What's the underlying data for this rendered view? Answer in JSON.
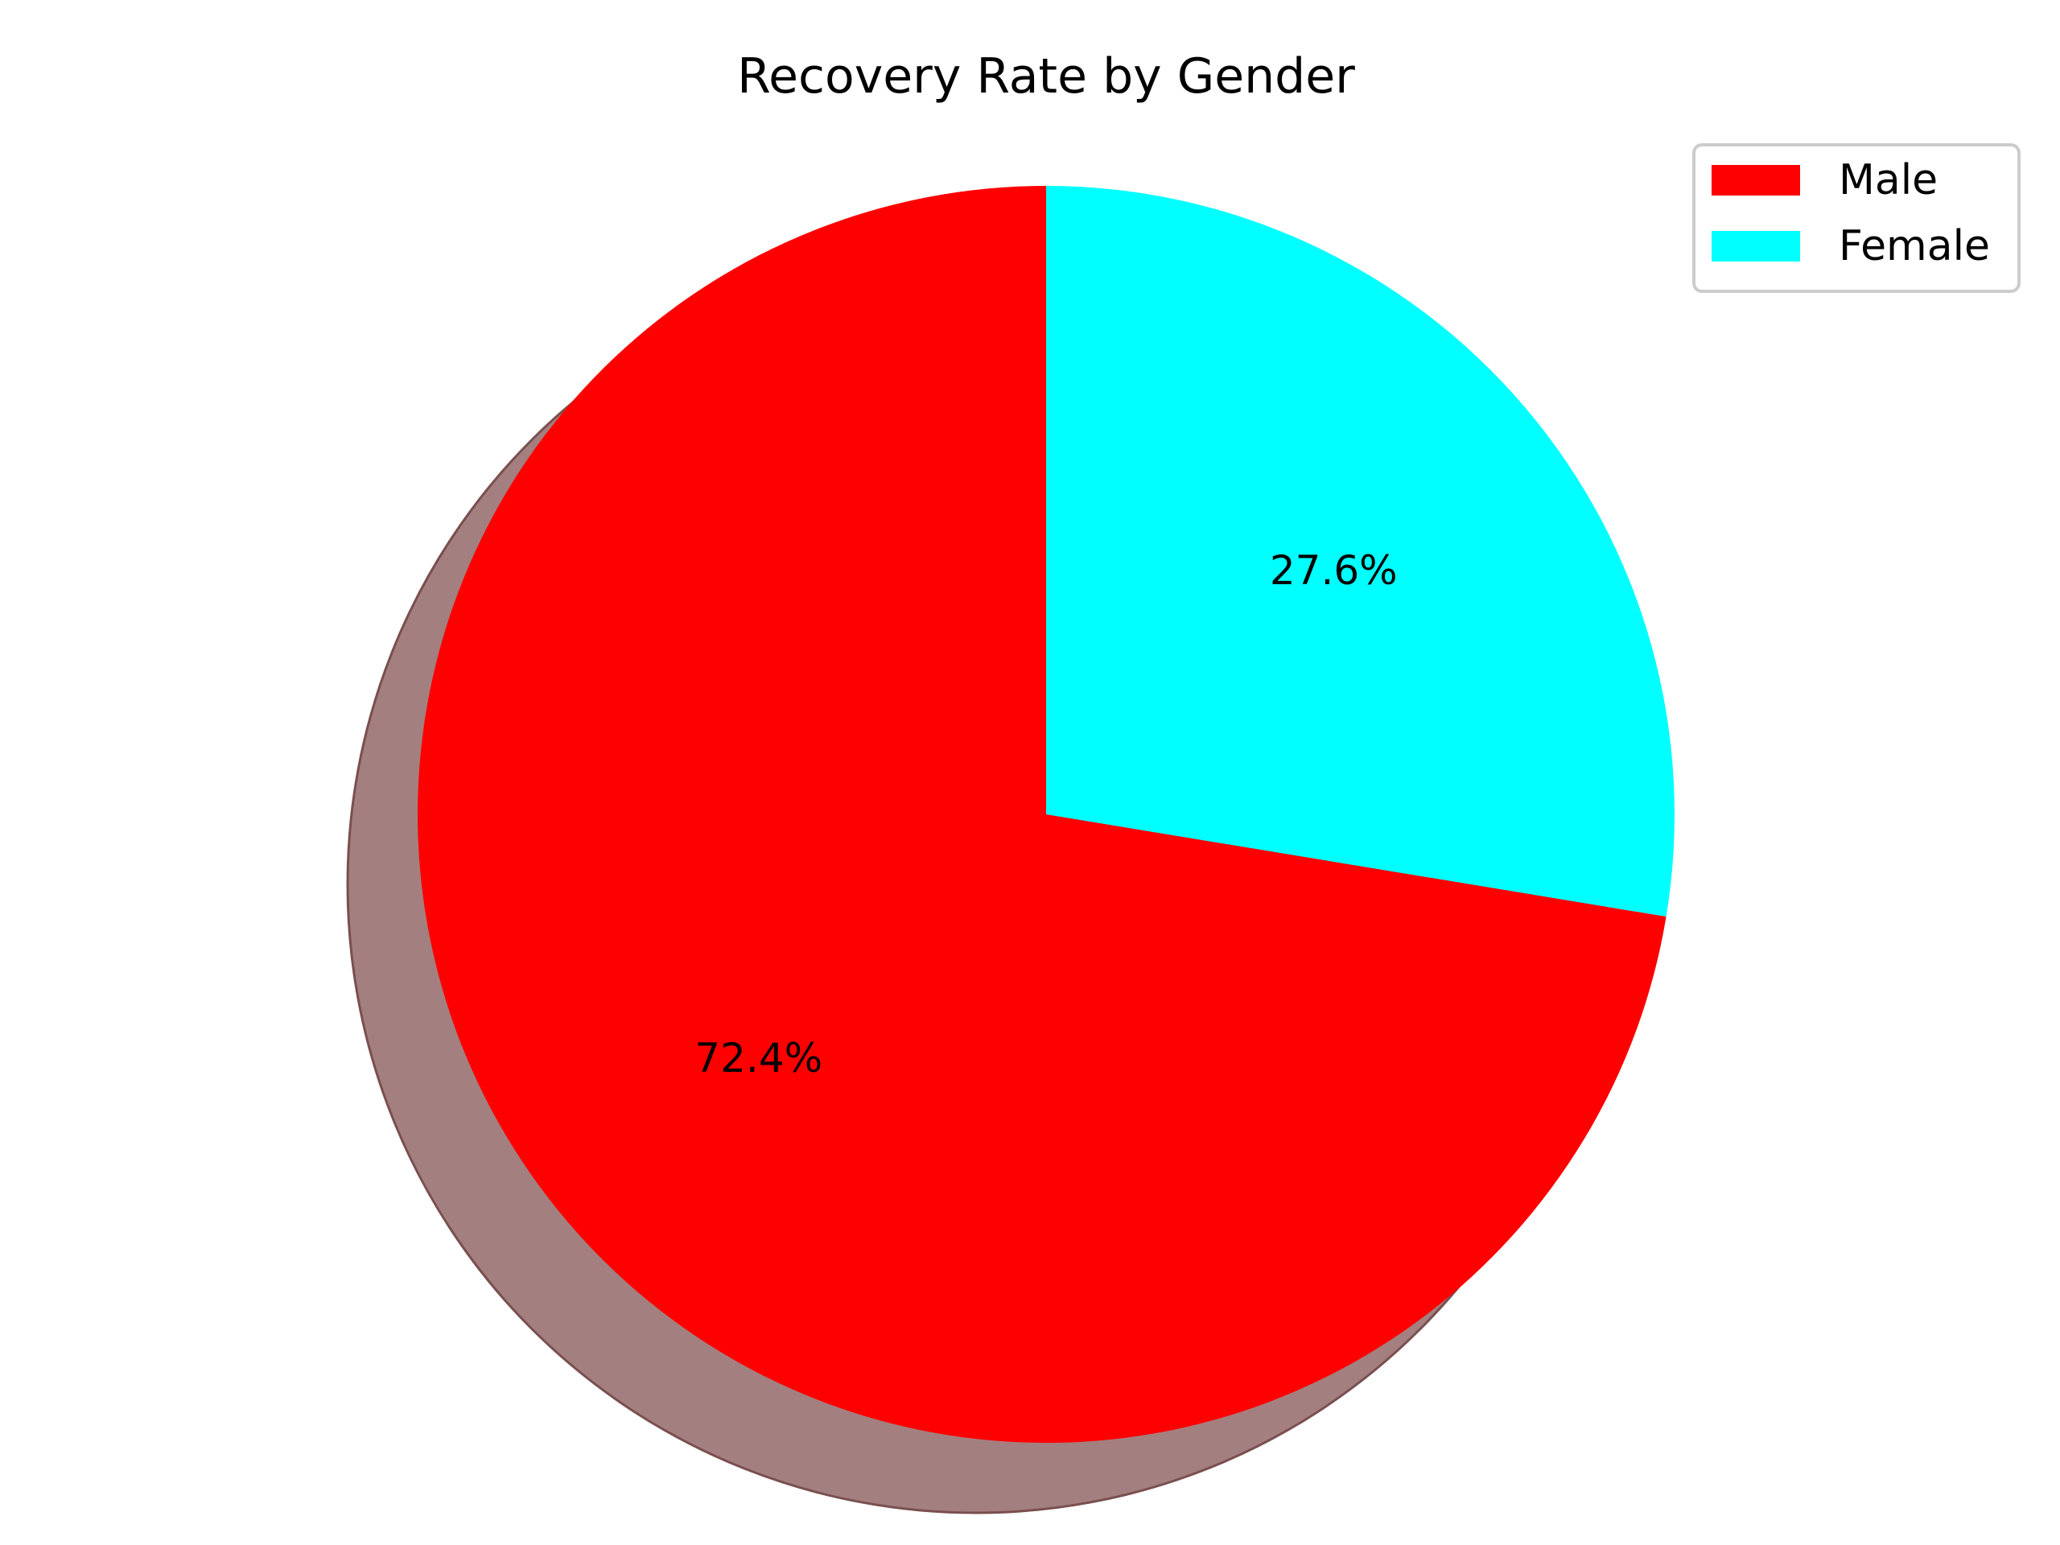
{
  "chart_data": {
    "type": "pie",
    "title": "Recovery Rate by Gender",
    "slices": [
      {
        "label": "Male",
        "value": 72.4,
        "pct_label": "72.4%",
        "color": "#ff0000"
      },
      {
        "label": "Female",
        "value": 27.6,
        "pct_label": "27.6%",
        "color": "#00ffff"
      }
    ],
    "start_angle_deg": 90,
    "direction": "counterclockwise",
    "shadow": true,
    "shadow_color": "#a47f7f",
    "legend": {
      "placement": "top-right",
      "entries": [
        "Male",
        "Female"
      ]
    }
  }
}
